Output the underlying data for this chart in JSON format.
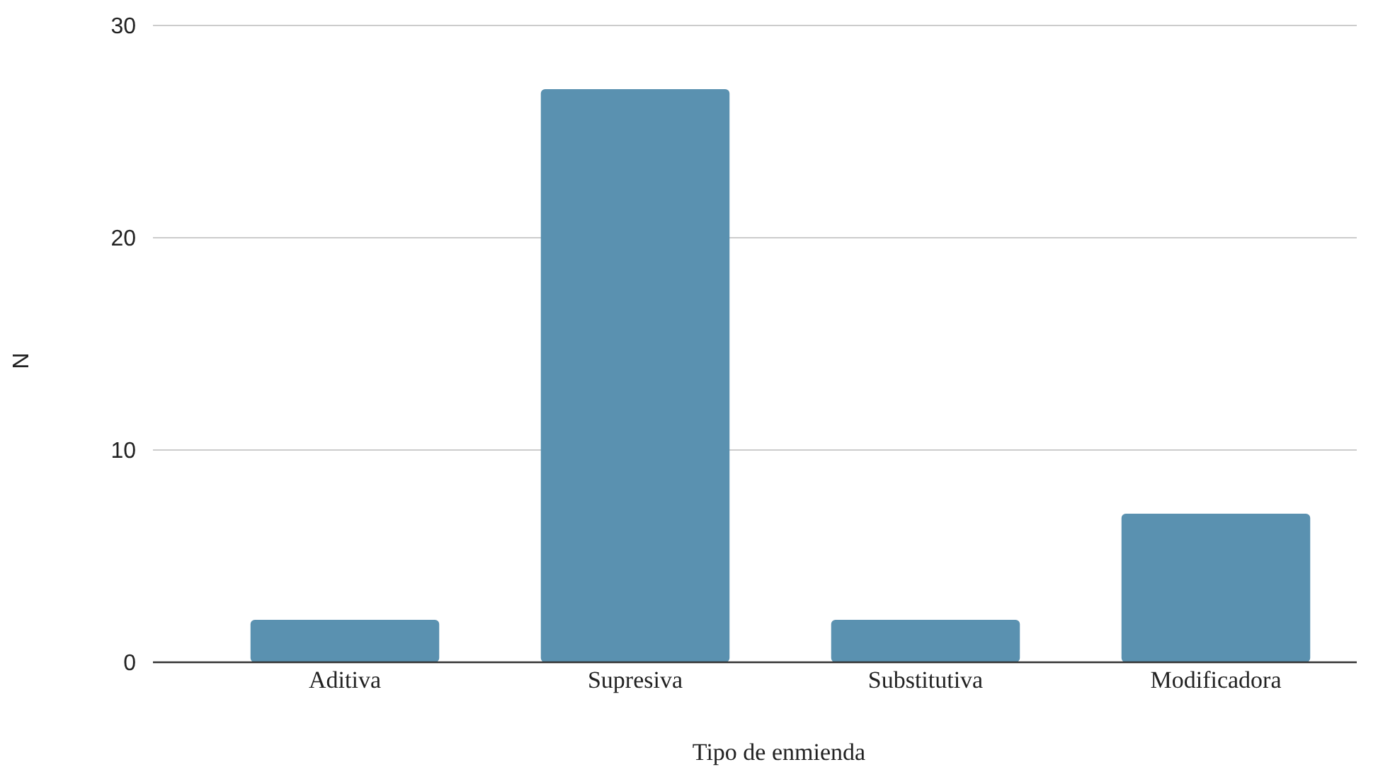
{
  "chart_data": {
    "type": "bar",
    "xlabel": "Tipo de enmienda",
    "ylabel": "N",
    "categories": [
      "Aditiva",
      "Supresiva",
      "Substitutiva",
      "Modificadora"
    ],
    "values": [
      2,
      27,
      2,
      7
    ],
    "color": "#5a91b0",
    "ylim": [
      0,
      30
    ],
    "yticks": [
      0,
      10,
      20,
      30
    ],
    "grid": "y"
  }
}
